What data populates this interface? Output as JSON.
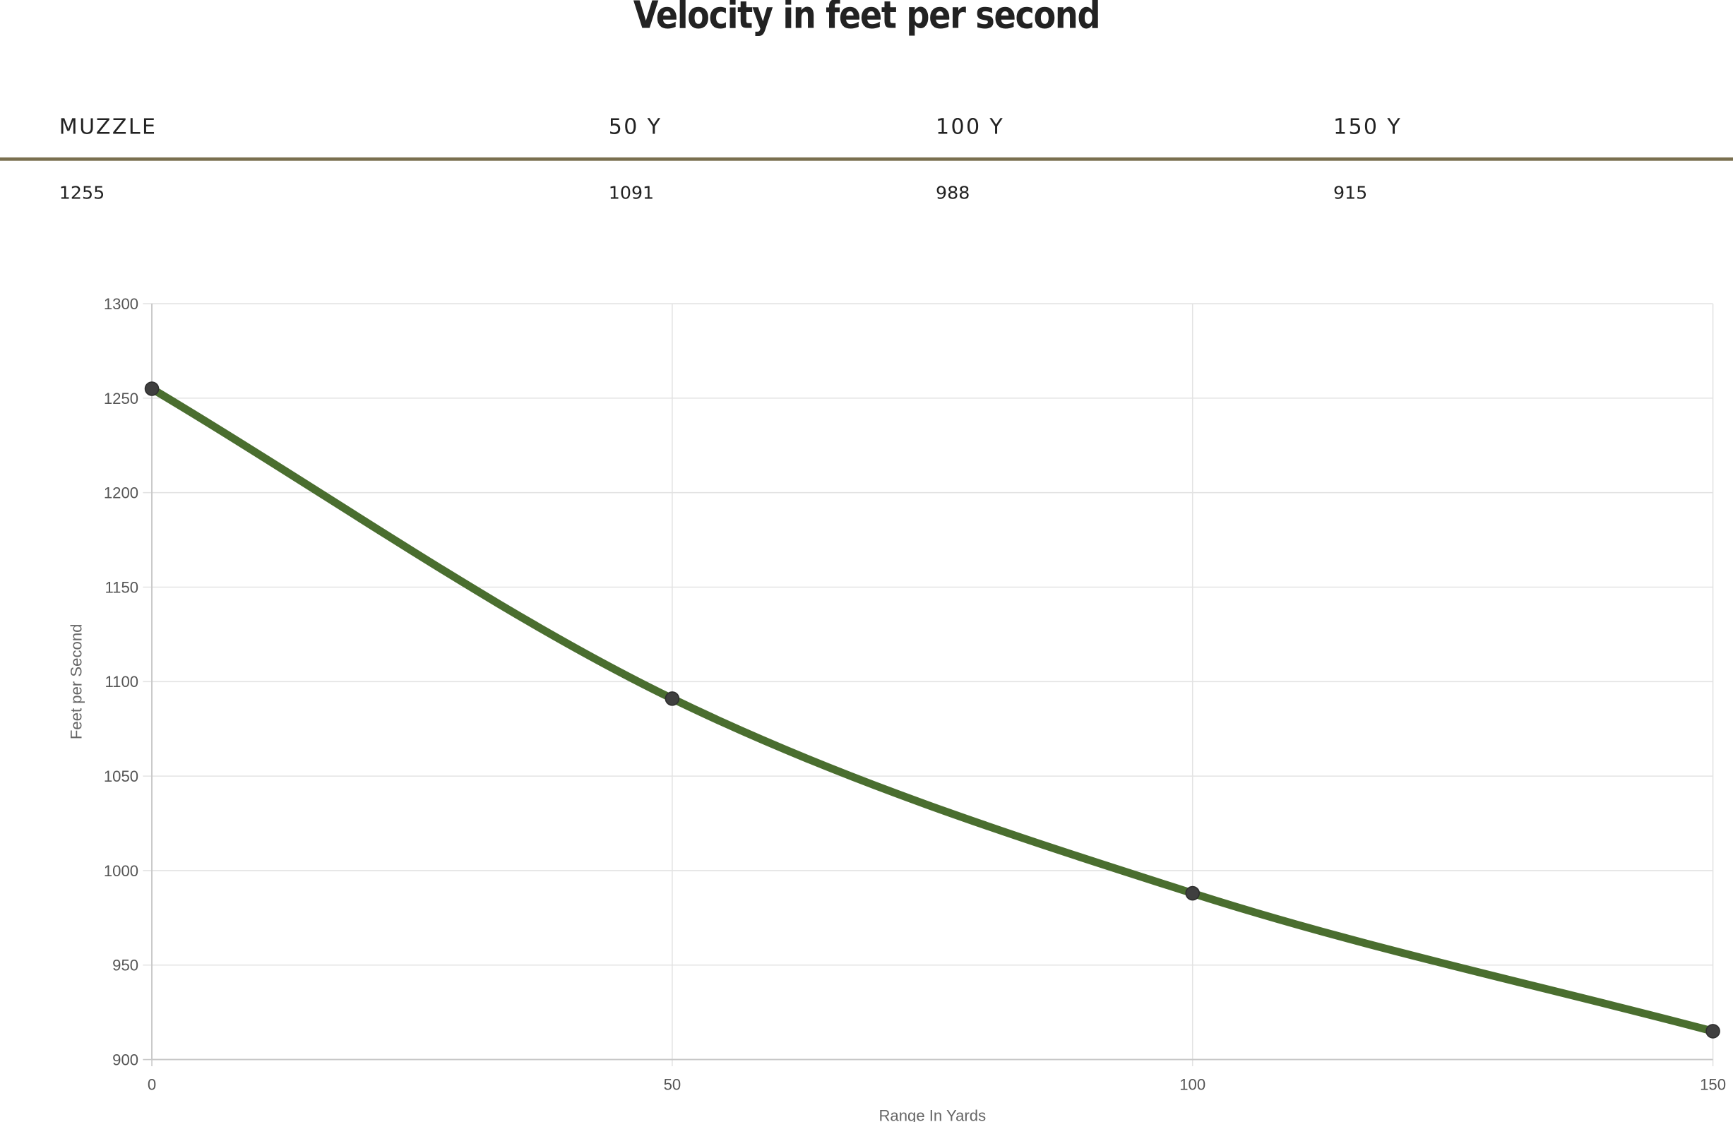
{
  "title": "Velocity in feet per second",
  "velocity_table": {
    "headers": [
      "MUZZLE",
      "50 Y",
      "100 Y",
      "150 Y"
    ],
    "values": [
      "1255",
      "1091",
      "988",
      "915"
    ]
  },
  "colors": {
    "line": "#4a6e2f",
    "point": "#3f3f3f",
    "rule": "#7a6f4f",
    "grid": "#e3e3e3",
    "axis": "#c8c8c8"
  },
  "chart_data": {
    "type": "line",
    "title": "Velocity in feet per second",
    "xlabel": "Range In Yards",
    "ylabel": "Feet per Second",
    "x": [
      0,
      50,
      100,
      150
    ],
    "series": [
      {
        "values": [
          1255,
          1091,
          988,
          915
        ]
      }
    ],
    "xlim": [
      0,
      150
    ],
    "ylim": [
      900,
      1300
    ],
    "xticks": [
      0,
      50,
      100,
      150
    ],
    "yticks": [
      900,
      950,
      1000,
      1050,
      1100,
      1150,
      1200,
      1250,
      1300
    ],
    "grid": true,
    "legend": "none"
  }
}
